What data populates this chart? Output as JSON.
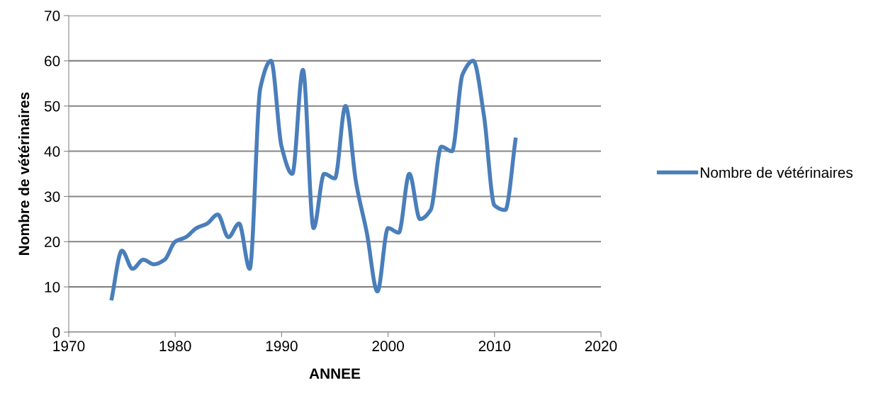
{
  "chart_data": {
    "type": "line",
    "xlabel": "ANNEE",
    "ylabel": "Nombre de vétérinaires",
    "x": [
      1974,
      1975,
      1976,
      1977,
      1978,
      1979,
      1980,
      1981,
      1982,
      1983,
      1984,
      1985,
      1986,
      1987,
      1988,
      1989,
      1990,
      1991,
      1992,
      1993,
      1994,
      1995,
      1996,
      1997,
      1998,
      1999,
      2000,
      2001,
      2002,
      2003,
      2004,
      2005,
      2006,
      2007,
      2008,
      2009,
      2010,
      2011,
      2012
    ],
    "series": [
      {
        "name": "Nombre de vétérinaires",
        "color": "#4a7ebb",
        "values": [
          7,
          18,
          14,
          16,
          15,
          16,
          20,
          21,
          23,
          24,
          26,
          21,
          24,
          14,
          54,
          60,
          41,
          35,
          58,
          23,
          35,
          34,
          50,
          33,
          22,
          9,
          23,
          22,
          35,
          25,
          27,
          41,
          40,
          57,
          60,
          48,
          28,
          27,
          43
        ]
      }
    ],
    "xlim": [
      1970,
      2020
    ],
    "xticks": [
      1970,
      1980,
      1990,
      2000,
      2010,
      2020
    ],
    "ylim": [
      0,
      70
    ],
    "yticks": [
      0,
      10,
      20,
      30,
      40,
      50,
      60,
      70
    ],
    "grid": "y",
    "legend": "right",
    "line_style": "solid",
    "marker": "none"
  }
}
